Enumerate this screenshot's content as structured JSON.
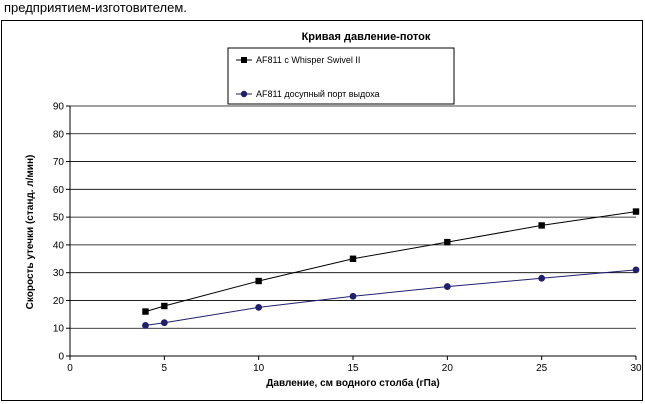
{
  "header": {
    "caption": "предприятием-изготовителем."
  },
  "chart_data": {
    "type": "line",
    "title": "Кривая давление-поток",
    "xlabel": "Давление, см водного столба (гПа)",
    "ylabel": "Скорость утечки (станд. л/мин)",
    "xlim": [
      0,
      30
    ],
    "ylim": [
      0,
      90
    ],
    "xticks": [
      0,
      5,
      10,
      15,
      20,
      25,
      30
    ],
    "yticks": [
      0,
      10,
      20,
      30,
      40,
      50,
      60,
      70,
      80,
      90
    ],
    "grid": "horizontal",
    "legend_position": "top-center",
    "series": [
      {
        "name": "AF811 с Whisper Swivel II",
        "color": "#000000",
        "marker": "square",
        "x": [
          4,
          5,
          10,
          15,
          20,
          25,
          30
        ],
        "y": [
          16,
          18,
          27,
          35,
          41,
          47,
          52
        ]
      },
      {
        "name": "AF811 досупный порт выдоха",
        "color": "#1f1f6e",
        "marker": "circle",
        "x": [
          4,
          5,
          10,
          15,
          20,
          25,
          30
        ],
        "y": [
          11,
          12,
          17.5,
          21.5,
          25,
          28,
          31
        ]
      }
    ]
  }
}
